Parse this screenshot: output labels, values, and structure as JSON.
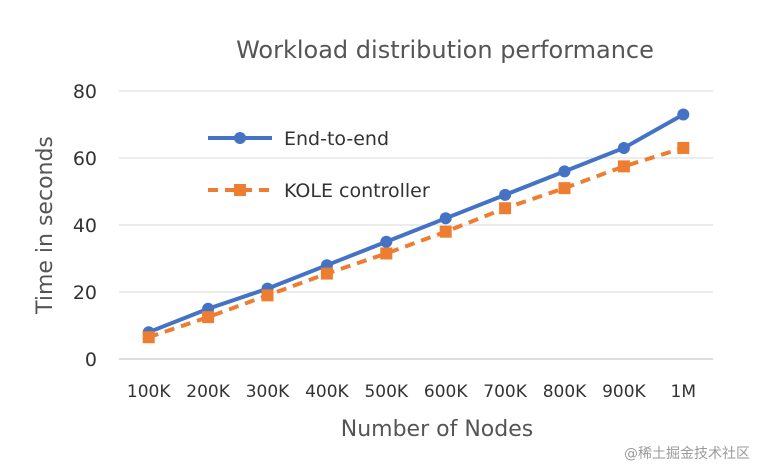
{
  "chart_data": {
    "type": "line",
    "title": "Workload distribution performance",
    "xlabel": "Number of Nodes",
    "ylabel": "Time in seconds",
    "categories": [
      "100K",
      "200K",
      "300K",
      "400K",
      "500K",
      "600K",
      "700K",
      "800K",
      "900K",
      "1M"
    ],
    "ylim": [
      0,
      80
    ],
    "yticks": [
      0,
      20,
      40,
      60,
      80
    ],
    "grid": true,
    "legend_position": "top-left",
    "series": [
      {
        "name": "End-to-end",
        "color": "#4472c4",
        "marker": "circle",
        "line_style": "solid",
        "values": [
          8,
          15,
          21,
          28,
          35,
          42,
          49,
          56,
          63,
          73
        ]
      },
      {
        "name": "KOLE controller",
        "color": "#ed7d31",
        "marker": "square",
        "line_style": "dashed",
        "values": [
          6.5,
          12.5,
          19,
          25.5,
          31.5,
          38,
          45,
          51,
          57.5,
          63
        ]
      }
    ]
  },
  "watermark": "@稀土掘金技术社区"
}
